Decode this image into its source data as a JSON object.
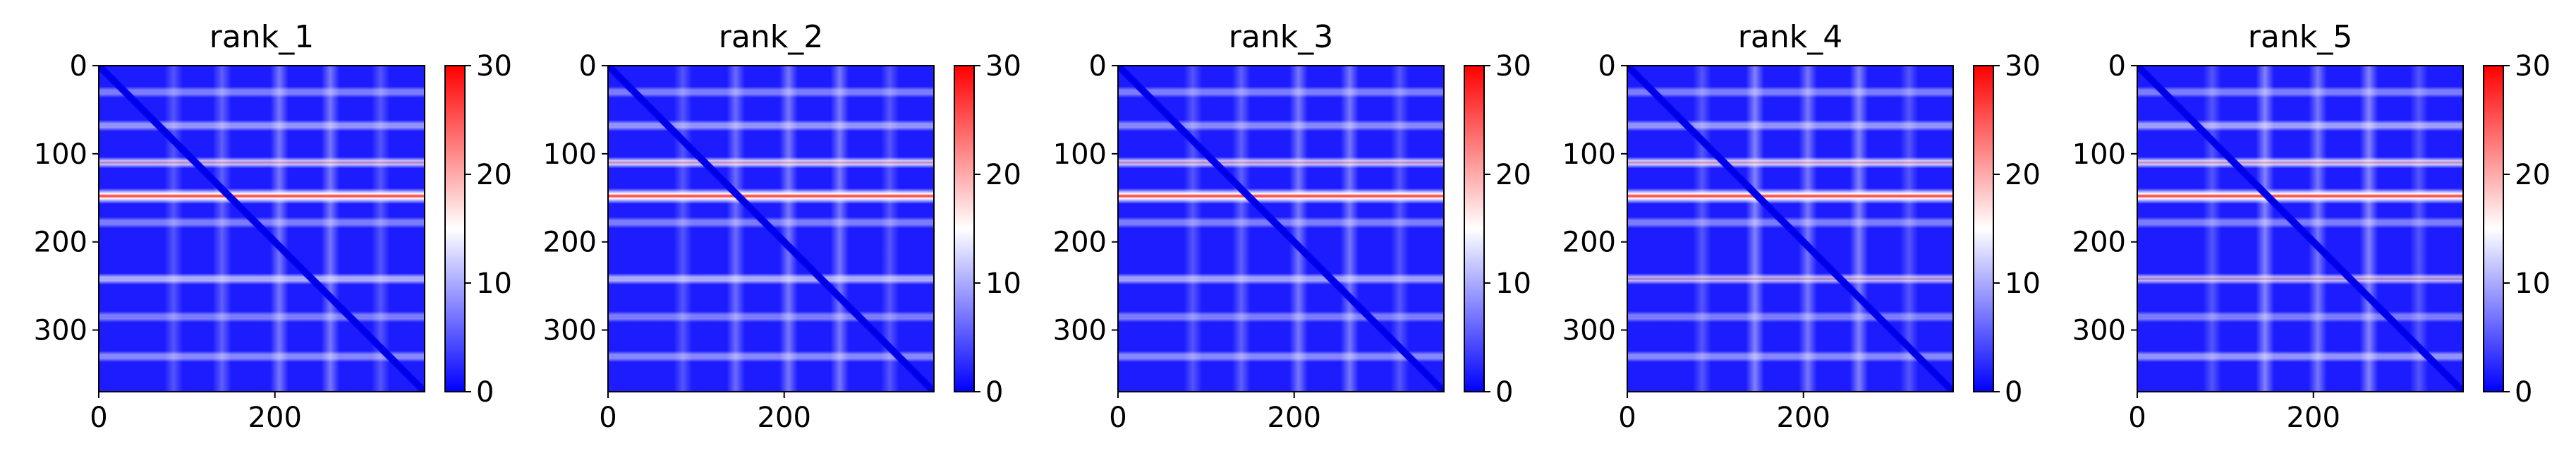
{
  "chart_data": {
    "type": "heatmap",
    "colormap": [
      "#0000ff",
      "#ffffff",
      "#ff0000"
    ],
    "panels": [
      {
        "title": "rank_1",
        "xlim": [
          0,
          370
        ],
        "ylim": [
          370,
          0
        ],
        "xticks": [
          0,
          200
        ],
        "yticks": [
          0,
          100,
          200,
          300
        ],
        "colorbar": {
          "min": 0,
          "max": 30,
          "ticks": [
            0,
            10,
            20,
            30
          ]
        },
        "bands": [
          [
            148,
            1.0
          ],
          [
            110,
            0.55
          ],
          [
            242,
            0.45
          ],
          [
            68,
            0.35
          ],
          [
            330,
            0.3
          ],
          [
            30,
            0.25
          ],
          [
            178,
            0.25
          ],
          [
            285,
            0.25
          ]
        ],
        "stripes": [
          [
            205,
            0.4
          ],
          [
            263,
            0.4
          ],
          [
            140,
            0.3
          ],
          [
            85,
            0.25
          ],
          [
            320,
            0.25
          ]
        ]
      },
      {
        "title": "rank_2",
        "xlim": [
          0,
          370
        ],
        "ylim": [
          370,
          0
        ],
        "xticks": [
          0,
          200
        ],
        "yticks": [
          0,
          100,
          200,
          300
        ],
        "colorbar": {
          "min": 0,
          "max": 30,
          "ticks": [
            0,
            10,
            20,
            30
          ]
        },
        "bands": [
          [
            148,
            1.0
          ],
          [
            110,
            0.6
          ],
          [
            242,
            0.45
          ],
          [
            68,
            0.35
          ],
          [
            330,
            0.3
          ],
          [
            30,
            0.25
          ],
          [
            178,
            0.25
          ],
          [
            285,
            0.25
          ]
        ],
        "stripes": [
          [
            205,
            0.4
          ],
          [
            263,
            0.4
          ],
          [
            145,
            0.35
          ],
          [
            85,
            0.25
          ],
          [
            320,
            0.25
          ]
        ]
      },
      {
        "title": "rank_3",
        "xlim": [
          0,
          370
        ],
        "ylim": [
          370,
          0
        ],
        "xticks": [
          0,
          200
        ],
        "yticks": [
          0,
          100,
          200,
          300
        ],
        "colorbar": {
          "min": 0,
          "max": 30,
          "ticks": [
            0,
            10,
            20,
            30
          ]
        },
        "bands": [
          [
            148,
            1.0
          ],
          [
            110,
            0.55
          ],
          [
            242,
            0.4
          ],
          [
            68,
            0.3
          ],
          [
            330,
            0.3
          ],
          [
            30,
            0.25
          ],
          [
            178,
            0.25
          ],
          [
            285,
            0.25
          ]
        ],
        "stripes": [
          [
            205,
            0.4
          ],
          [
            263,
            0.4
          ],
          [
            140,
            0.3
          ],
          [
            85,
            0.25
          ],
          [
            320,
            0.25
          ]
        ]
      },
      {
        "title": "rank_4",
        "xlim": [
          0,
          370
        ],
        "ylim": [
          370,
          0
        ],
        "xticks": [
          0,
          200
        ],
        "yticks": [
          0,
          100,
          200,
          300
        ],
        "colorbar": {
          "min": 0,
          "max": 30,
          "ticks": [
            0,
            10,
            20,
            30
          ]
        },
        "bands": [
          [
            148,
            1.0
          ],
          [
            110,
            0.6
          ],
          [
            242,
            0.5
          ],
          [
            68,
            0.35
          ],
          [
            330,
            0.3
          ],
          [
            30,
            0.25
          ],
          [
            178,
            0.25
          ],
          [
            285,
            0.25
          ]
        ],
        "stripes": [
          [
            205,
            0.4
          ],
          [
            263,
            0.45
          ],
          [
            145,
            0.45
          ],
          [
            85,
            0.25
          ],
          [
            320,
            0.25
          ]
        ]
      },
      {
        "title": "rank_5",
        "xlim": [
          0,
          370
        ],
        "ylim": [
          370,
          0
        ],
        "xticks": [
          0,
          200
        ],
        "yticks": [
          0,
          100,
          200,
          300
        ],
        "colorbar": {
          "min": 0,
          "max": 30,
          "ticks": [
            0,
            10,
            20,
            30
          ]
        },
        "bands": [
          [
            148,
            1.0
          ],
          [
            110,
            0.6
          ],
          [
            242,
            0.5
          ],
          [
            68,
            0.4
          ],
          [
            330,
            0.35
          ],
          [
            30,
            0.25
          ],
          [
            178,
            0.25
          ],
          [
            285,
            0.25
          ]
        ],
        "stripes": [
          [
            205,
            0.4
          ],
          [
            263,
            0.45
          ],
          [
            145,
            0.45
          ],
          [
            85,
            0.25
          ],
          [
            320,
            0.25
          ]
        ]
      }
    ]
  }
}
